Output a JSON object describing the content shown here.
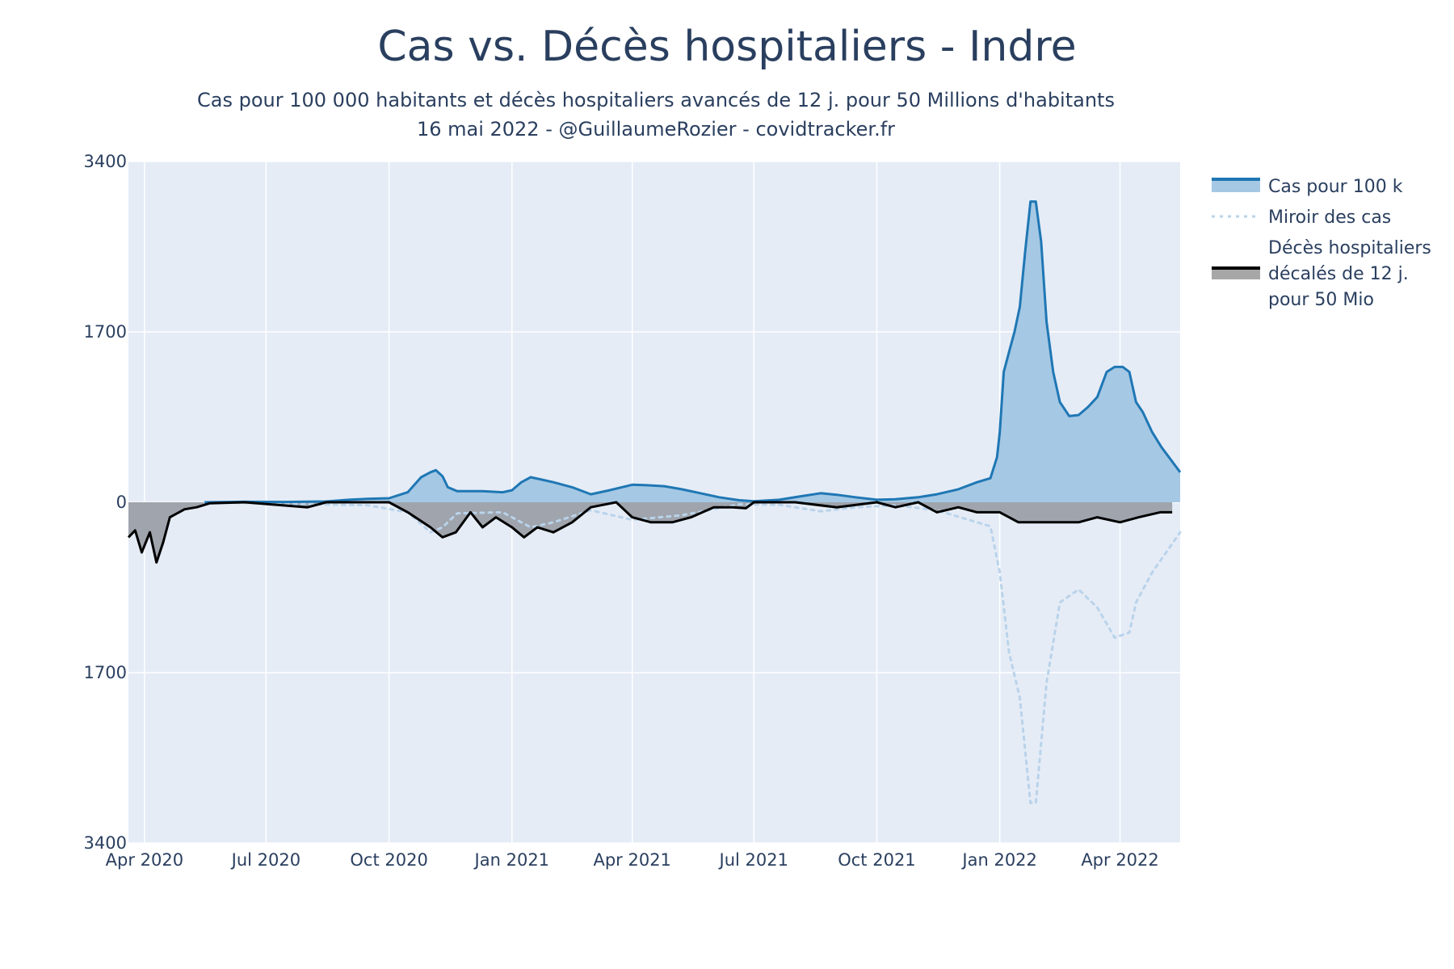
{
  "chart_data": {
    "type": "area",
    "title": "Cas vs. Décès hospitaliers - Indre",
    "subtitle_lines": [
      "Cas pour 100 000 habitants et décès hospitaliers avancés de 12 j. pour 50 Millions d'habitants",
      "16 mai 2022 - @GuillaumeRozier - covidtracker.fr"
    ],
    "xlabel": "",
    "ylabel": "",
    "xlim": [
      "2020-03-20",
      "2022-05-16"
    ],
    "ylim": [
      -3400,
      3400
    ],
    "y_ticks": [
      {
        "value": 3400,
        "label": "3400"
      },
      {
        "value": 1700,
        "label": "1700"
      },
      {
        "value": 0,
        "label": "0"
      },
      {
        "value": -1700,
        "label": "1700"
      },
      {
        "value": -3400,
        "label": "3400"
      }
    ],
    "x_ticks": [
      {
        "date": "2020-04-01",
        "label": "Apr 2020"
      },
      {
        "date": "2020-07-01",
        "label": "Jul 2020"
      },
      {
        "date": "2020-10-01",
        "label": "Oct 2020"
      },
      {
        "date": "2021-01-01",
        "label": "Jan 2021"
      },
      {
        "date": "2021-04-01",
        "label": "Apr 2021"
      },
      {
        "date": "2021-07-01",
        "label": "Jul 2021"
      },
      {
        "date": "2021-10-01",
        "label": "Oct 2021"
      },
      {
        "date": "2022-01-01",
        "label": "Jan 2022"
      },
      {
        "date": "2022-04-01",
        "label": "Apr 2022"
      }
    ],
    "grid": true,
    "legend_position": "right",
    "colors": {
      "plot_bg": "#e5ecf6",
      "grid": "#ffffff",
      "cases_line": "#1f77b4",
      "cases_fill": "#a5c8e4",
      "mirror_line": "#b9d3ea",
      "deaths_line": "#000000",
      "deaths_fill": "#9fa4ad"
    },
    "series": [
      {
        "name": "Cas pour 100 k",
        "style": "line-fill-positive",
        "points": [
          [
            "2020-05-16",
            0
          ],
          [
            "2020-06-15",
            5
          ],
          [
            "2020-07-15",
            3
          ],
          [
            "2020-08-15",
            8
          ],
          [
            "2020-09-01",
            25
          ],
          [
            "2020-09-15",
            35
          ],
          [
            "2020-10-01",
            40
          ],
          [
            "2020-10-15",
            100
          ],
          [
            "2020-10-25",
            250
          ],
          [
            "2020-11-01",
            300
          ],
          [
            "2020-11-05",
            320
          ],
          [
            "2020-11-10",
            260
          ],
          [
            "2020-11-14",
            150
          ],
          [
            "2020-11-21",
            110
          ],
          [
            "2020-12-10",
            110
          ],
          [
            "2020-12-25",
            100
          ],
          [
            "2021-01-01",
            120
          ],
          [
            "2021-01-08",
            200
          ],
          [
            "2021-01-15",
            250
          ],
          [
            "2021-01-22",
            230
          ],
          [
            "2021-02-01",
            200
          ],
          [
            "2021-02-15",
            150
          ],
          [
            "2021-03-01",
            80
          ],
          [
            "2021-03-15",
            120
          ],
          [
            "2021-04-01",
            175
          ],
          [
            "2021-04-12",
            170
          ],
          [
            "2021-04-25",
            160
          ],
          [
            "2021-05-08",
            130
          ],
          [
            "2021-05-22",
            90
          ],
          [
            "2021-06-05",
            50
          ],
          [
            "2021-06-20",
            20
          ],
          [
            "2021-07-01",
            10
          ],
          [
            "2021-07-20",
            25
          ],
          [
            "2021-08-05",
            60
          ],
          [
            "2021-08-20",
            90
          ],
          [
            "2021-09-01",
            75
          ],
          [
            "2021-09-15",
            50
          ],
          [
            "2021-10-01",
            25
          ],
          [
            "2021-10-15",
            30
          ],
          [
            "2021-11-01",
            50
          ],
          [
            "2021-11-15",
            80
          ],
          [
            "2021-12-01",
            130
          ],
          [
            "2021-12-15",
            200
          ],
          [
            "2021-12-25",
            240
          ],
          [
            "2021-12-30",
            450
          ],
          [
            "2022-01-01",
            700
          ],
          [
            "2022-01-04",
            1300
          ],
          [
            "2022-01-08",
            1500
          ],
          [
            "2022-01-12",
            1700
          ],
          [
            "2022-01-16",
            1950
          ],
          [
            "2022-01-20",
            2500
          ],
          [
            "2022-01-24",
            3000
          ],
          [
            "2022-01-28",
            3000
          ],
          [
            "2022-02-01",
            2600
          ],
          [
            "2022-02-05",
            1800
          ],
          [
            "2022-02-10",
            1300
          ],
          [
            "2022-02-15",
            1000
          ],
          [
            "2022-02-22",
            860
          ],
          [
            "2022-03-01",
            870
          ],
          [
            "2022-03-08",
            950
          ],
          [
            "2022-03-15",
            1050
          ],
          [
            "2022-03-22",
            1300
          ],
          [
            "2022-03-28",
            1350
          ],
          [
            "2022-04-03",
            1350
          ],
          [
            "2022-04-08",
            1300
          ],
          [
            "2022-04-13",
            1000
          ],
          [
            "2022-04-18",
            900
          ],
          [
            "2022-04-25",
            700
          ],
          [
            "2022-05-02",
            550
          ],
          [
            "2022-05-16",
            300
          ]
        ]
      },
      {
        "name": "Miroir des cas",
        "style": "dotted-mirror",
        "points": [
          [
            "2020-05-16",
            0
          ],
          [
            "2020-09-15",
            -30
          ],
          [
            "2020-10-15",
            -100
          ],
          [
            "2020-11-01",
            -300
          ],
          [
            "2020-11-10",
            -250
          ],
          [
            "2020-11-21",
            -110
          ],
          [
            "2020-12-25",
            -100
          ],
          [
            "2021-01-15",
            -250
          ],
          [
            "2021-02-01",
            -200
          ],
          [
            "2021-03-01",
            -80
          ],
          [
            "2021-04-01",
            -175
          ],
          [
            "2021-05-08",
            -130
          ],
          [
            "2021-06-20",
            -20
          ],
          [
            "2021-07-20",
            -25
          ],
          [
            "2021-08-20",
            -90
          ],
          [
            "2021-09-15",
            -50
          ],
          [
            "2021-10-15",
            -30
          ],
          [
            "2021-11-15",
            -80
          ],
          [
            "2021-12-15",
            -200
          ],
          [
            "2021-12-25",
            -240
          ],
          [
            "2022-01-01",
            -700
          ],
          [
            "2022-01-08",
            -1500
          ],
          [
            "2022-01-16",
            -1950
          ],
          [
            "2022-01-24",
            -3000
          ],
          [
            "2022-01-28",
            -3000
          ],
          [
            "2022-02-05",
            -1800
          ],
          [
            "2022-02-15",
            -1000
          ],
          [
            "2022-03-01",
            -870
          ],
          [
            "2022-03-15",
            -1050
          ],
          [
            "2022-03-28",
            -1350
          ],
          [
            "2022-04-08",
            -1300
          ],
          [
            "2022-04-13",
            -1000
          ],
          [
            "2022-04-25",
            -700
          ],
          [
            "2022-05-16",
            -300
          ]
        ]
      },
      {
        "name": "Décès hospitaliers décalés de 12 j. pour 50 Mio",
        "style": "line-fill-negative",
        "points": [
          [
            "2020-03-20",
            -350
          ],
          [
            "2020-03-25",
            -280
          ],
          [
            "2020-03-30",
            -500
          ],
          [
            "2020-04-05",
            -300
          ],
          [
            "2020-04-10",
            -600
          ],
          [
            "2020-04-15",
            -400
          ],
          [
            "2020-04-20",
            -150
          ],
          [
            "2020-05-01",
            -70
          ],
          [
            "2020-05-10",
            -50
          ],
          [
            "2020-05-20",
            -10
          ],
          [
            "2020-06-15",
            0
          ],
          [
            "2020-08-01",
            -50
          ],
          [
            "2020-08-15",
            0
          ],
          [
            "2020-10-01",
            0
          ],
          [
            "2020-10-15",
            -100
          ],
          [
            "2020-11-01",
            -250
          ],
          [
            "2020-11-10",
            -350
          ],
          [
            "2020-11-20",
            -300
          ],
          [
            "2020-12-01",
            -100
          ],
          [
            "2020-12-10",
            -250
          ],
          [
            "2020-12-20",
            -150
          ],
          [
            "2021-01-01",
            -250
          ],
          [
            "2021-01-10",
            -350
          ],
          [
            "2021-01-20",
            -250
          ],
          [
            "2021-02-01",
            -300
          ],
          [
            "2021-02-15",
            -200
          ],
          [
            "2021-03-01",
            -50
          ],
          [
            "2021-03-20",
            0
          ],
          [
            "2021-04-01",
            -150
          ],
          [
            "2021-04-15",
            -200
          ],
          [
            "2021-05-01",
            -200
          ],
          [
            "2021-05-15",
            -150
          ],
          [
            "2021-06-01",
            -50
          ],
          [
            "2021-06-15",
            -50
          ],
          [
            "2021-06-25",
            -60
          ],
          [
            "2021-07-01",
            0
          ],
          [
            "2021-08-01",
            0
          ],
          [
            "2021-09-01",
            -50
          ],
          [
            "2021-10-01",
            0
          ],
          [
            "2021-10-15",
            -50
          ],
          [
            "2021-11-01",
            0
          ],
          [
            "2021-11-15",
            -100
          ],
          [
            "2021-12-01",
            -50
          ],
          [
            "2021-12-15",
            -100
          ],
          [
            "2022-01-01",
            -100
          ],
          [
            "2022-01-15",
            -200
          ],
          [
            "2022-02-01",
            -200
          ],
          [
            "2022-02-15",
            -200
          ],
          [
            "2022-03-01",
            -200
          ],
          [
            "2022-03-15",
            -150
          ],
          [
            "2022-04-01",
            -200
          ],
          [
            "2022-04-15",
            -150
          ],
          [
            "2022-05-01",
            -100
          ],
          [
            "2022-05-10",
            -100
          ]
        ]
      }
    ],
    "legend": [
      {
        "key": "cases",
        "lines": [
          "Cas pour 100 k"
        ]
      },
      {
        "key": "mirror",
        "lines": [
          "Miroir des cas"
        ]
      },
      {
        "key": "deaths",
        "lines": [
          "Décès hospitaliers",
          "décalés de 12 j.",
          "pour 50 Mio"
        ]
      }
    ]
  }
}
